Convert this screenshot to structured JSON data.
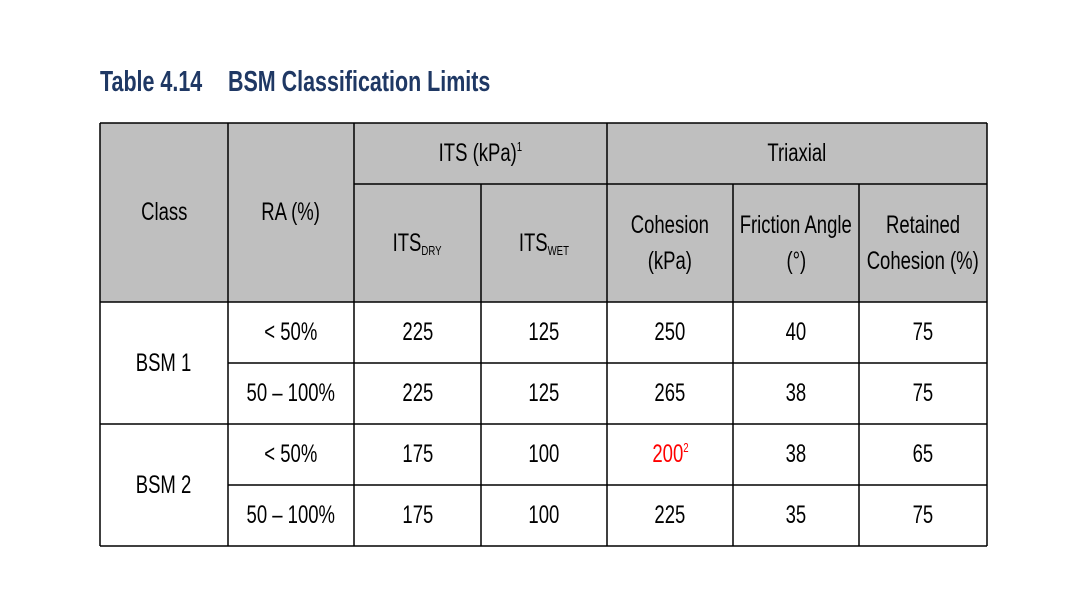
{
  "title": {
    "number": "Table 4.14",
    "text": "BSM Classification Limits"
  },
  "table": {
    "header": {
      "class": "Class",
      "ra": "RA (%)",
      "its": {
        "text": "ITS (kPa)",
        "sup": "1"
      },
      "triaxial": "Triaxial",
      "its_dry": {
        "text": "ITS",
        "sub": "DRY"
      },
      "its_wet": {
        "text": "ITS",
        "sub": "WET"
      },
      "cohesion": [
        "Cohesion",
        "(kPa)"
      ],
      "friction": [
        "Friction Angle",
        "(°)"
      ],
      "retained": [
        "Retained",
        "Cohesion (%)"
      ]
    },
    "groups": [
      {
        "class": "BSM 1",
        "rows": [
          [
            "< 50%",
            225,
            125,
            250,
            40,
            75
          ],
          [
            "50 – 100%",
            225,
            125,
            265,
            38,
            75
          ]
        ]
      },
      {
        "class": "BSM 2",
        "rows": [
          [
            "< 50%",
            175,
            100,
            {
              "value": 200,
              "sup": "2",
              "color": "#ff0000"
            },
            38,
            65
          ],
          [
            "50 – 100%",
            175,
            100,
            225,
            35,
            75
          ]
        ]
      }
    ]
  }
}
